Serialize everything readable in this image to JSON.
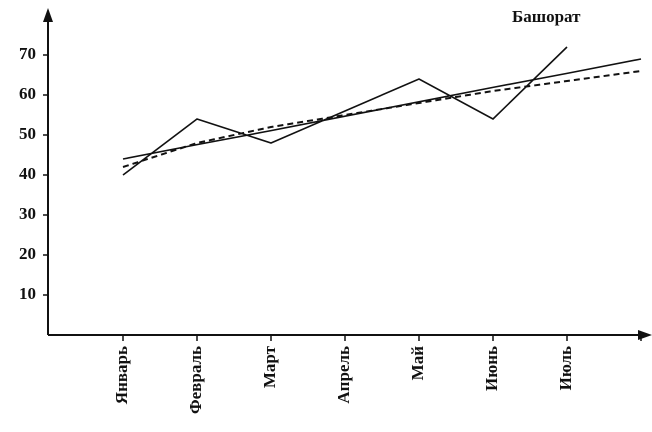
{
  "chart_data": {
    "type": "line",
    "annotation": "Башорат",
    "categories": [
      "Январь",
      "Февраль",
      "Март",
      "Апрель",
      "Май",
      "Июнь",
      "Июль",
      null
    ],
    "series": [
      {
        "color": "#111111",
        "dash": false,
        "values": [
          40,
          54,
          48,
          56,
          64,
          54,
          72,
          null
        ]
      },
      {
        "color": "#111111",
        "dash": false,
        "values": [
          44,
          47.6,
          51.1,
          54.7,
          58.3,
          61.9,
          65.4,
          69
        ]
      },
      {
        "color": "#111111",
        "dash": true,
        "values": [
          42,
          48,
          52,
          55,
          58,
          61,
          63.5,
          66
        ]
      }
    ],
    "ylim": [
      0,
      80
    ],
    "yticks": [
      10,
      20,
      30,
      40,
      50,
      60,
      70
    ],
    "grid": false
  }
}
